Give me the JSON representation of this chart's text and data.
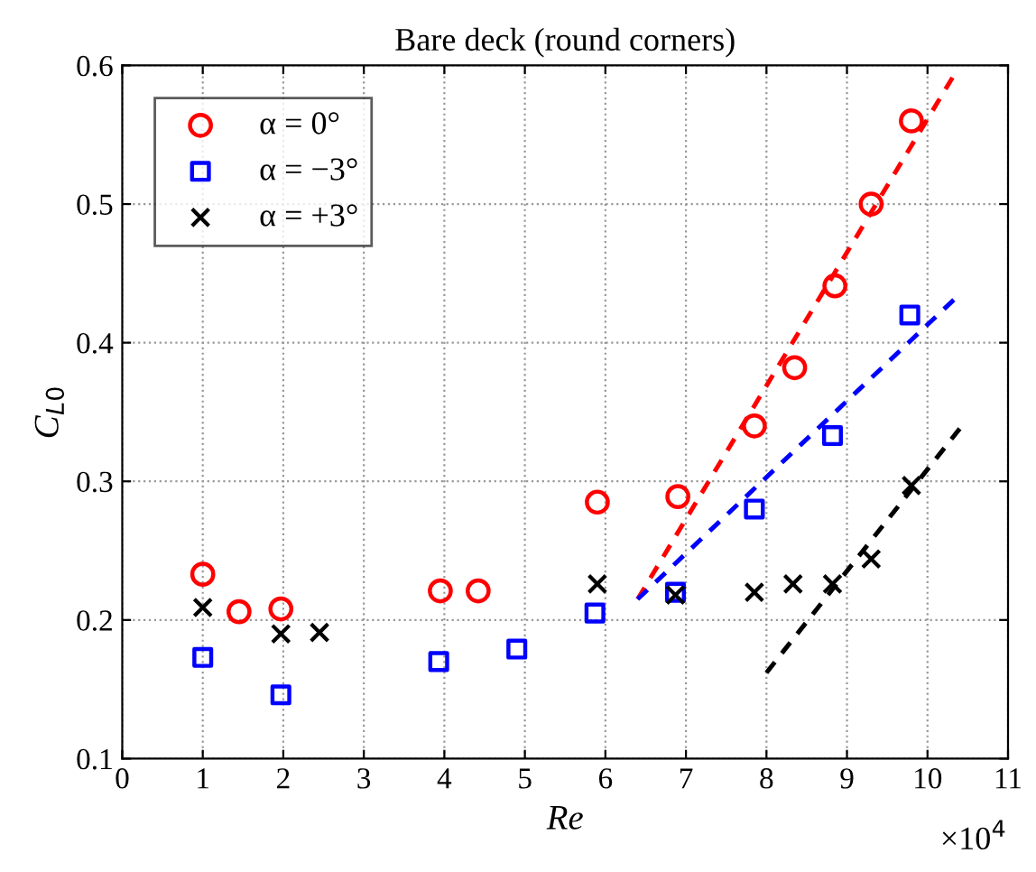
{
  "chart_data": {
    "type": "scatter",
    "title": "Bare deck (round corners)",
    "xlabel": "Re",
    "ylabel": "C$_{L0}$",
    "xlim": [
      0,
      11
    ],
    "xticks": [
      0,
      1,
      2,
      3,
      4,
      5,
      6,
      7,
      8,
      9,
      10,
      11
    ],
    "ylim": [
      0.1,
      0.6
    ],
    "yticks": [
      0.1,
      0.2,
      0.3,
      0.4,
      0.5,
      0.6
    ],
    "grid": true,
    "legend": "top left",
    "annotations": [
      "×10$^{4}$"
    ],
    "series": [
      {
        "name": "α = 0°",
        "color": "#ff0000",
        "marker": "circle",
        "x": [
          1.0,
          1.45,
          1.97,
          3.95,
          4.42,
          5.9,
          6.9,
          7.85,
          8.35,
          8.85,
          9.3,
          9.8
        ],
        "values": [
          0.233,
          0.206,
          0.208,
          0.221,
          0.221,
          0.285,
          0.289,
          0.34,
          0.382,
          0.441,
          0.5,
          0.56
        ]
      },
      {
        "name": "α = −3°",
        "color": "#0000ff",
        "marker": "square",
        "x": [
          1.0,
          1.97,
          3.93,
          4.9,
          5.87,
          6.87,
          7.85,
          8.82,
          9.78
        ],
        "values": [
          0.173,
          0.146,
          0.17,
          0.179,
          0.205,
          0.22,
          0.28,
          0.333,
          0.42
        ]
      },
      {
        "name": "α = +3°",
        "color": "#000000",
        "marker": "cross",
        "x": [
          1.0,
          1.97,
          2.45,
          5.9,
          6.87,
          7.85,
          8.33,
          8.82,
          9.3,
          9.8
        ],
        "values": [
          0.209,
          0.19,
          0.191,
          0.226,
          0.218,
          0.22,
          0.226,
          0.226,
          0.244,
          0.297
        ]
      },
      {
        "type": "line",
        "line_style": "dashed",
        "color": "#ff0000",
        "x": [
          6.4,
          10.35
        ],
        "values": [
          0.215,
          0.595
        ]
      },
      {
        "type": "line",
        "line_style": "dashed",
        "color": "#0000ff",
        "x": [
          6.4,
          10.4
        ],
        "values": [
          0.215,
          0.435
        ]
      },
      {
        "type": "line",
        "line_style": "dashed",
        "color": "#000000",
        "x": [
          8.0,
          10.4
        ],
        "values": [
          0.162,
          0.338
        ]
      }
    ]
  }
}
